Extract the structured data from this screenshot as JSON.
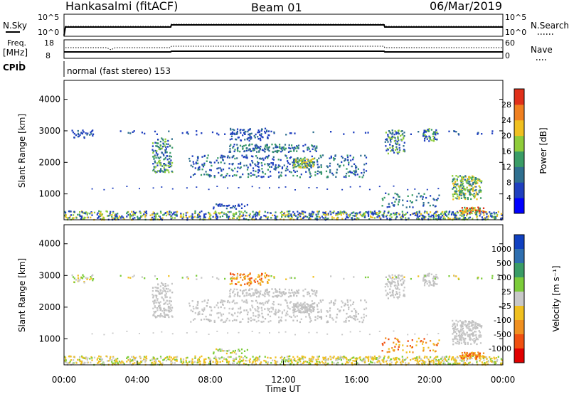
{
  "header": {
    "title": "Hankasalmi (fitACF)",
    "beam": "Beam 01",
    "date": "06/Mar/2019"
  },
  "top_panels": {
    "nsky_label": "N.Sky",
    "nsearch_label": "N.Search",
    "nsky_ticks": [
      "10^5",
      "10^0"
    ],
    "nsearch_ticks": [
      "10^5",
      "10^0"
    ],
    "freq_label": "Freq.",
    "freq_unit": "[MHz]",
    "freq_ticks": [
      "18",
      "8"
    ],
    "nave_label": "Nave",
    "nave_ticks": [
      "60",
      "0"
    ],
    "cpid_label": "CPID",
    "cpid_text": "normal (fast stereo) 153"
  },
  "chart_data": [
    {
      "type": "heatmap",
      "name": "power-panel",
      "ylabel": "Slant Range [km]",
      "ylim": [
        180,
        4600
      ],
      "yticks": [
        1000,
        2000,
        3000,
        4000
      ],
      "xlim": [
        0,
        24
      ],
      "colorbar": {
        "label": "Power [dB]",
        "range": [
          0,
          32
        ],
        "ticks": [
          "4",
          "8",
          "12",
          "16",
          "20",
          "24",
          "28"
        ],
        "colors": [
          "#0000ff",
          "#1f3fbf",
          "#2f6f8f",
          "#3a9c66",
          "#8fcc3a",
          "#f0c020",
          "#f08020",
          "#e0301a"
        ]
      }
    },
    {
      "type": "heatmap",
      "name": "velocity-panel",
      "ylabel": "Slant Range [km]",
      "ylim": [
        180,
        4600
      ],
      "yticks": [
        1000,
        2000,
        3000,
        4000
      ],
      "xlim": [
        0,
        24
      ],
      "xlabel": "Time UT",
      "xticks": [
        "00:00",
        "04:00",
        "08:00",
        "12:00",
        "16:00",
        "20:00",
        "00:00"
      ],
      "colorbar": {
        "label": "Velocity [m s⁻¹]",
        "ticks": [
          "1000",
          "500",
          "100",
          "25",
          "-25",
          "-100",
          "-500",
          "-1000"
        ],
        "colors": [
          "#1040c0",
          "#2f6fb0",
          "#3a9c66",
          "#7ccc3a",
          "#c8c8c8",
          "#f0c020",
          "#f09020",
          "#f05010",
          "#e00000"
        ]
      }
    }
  ]
}
